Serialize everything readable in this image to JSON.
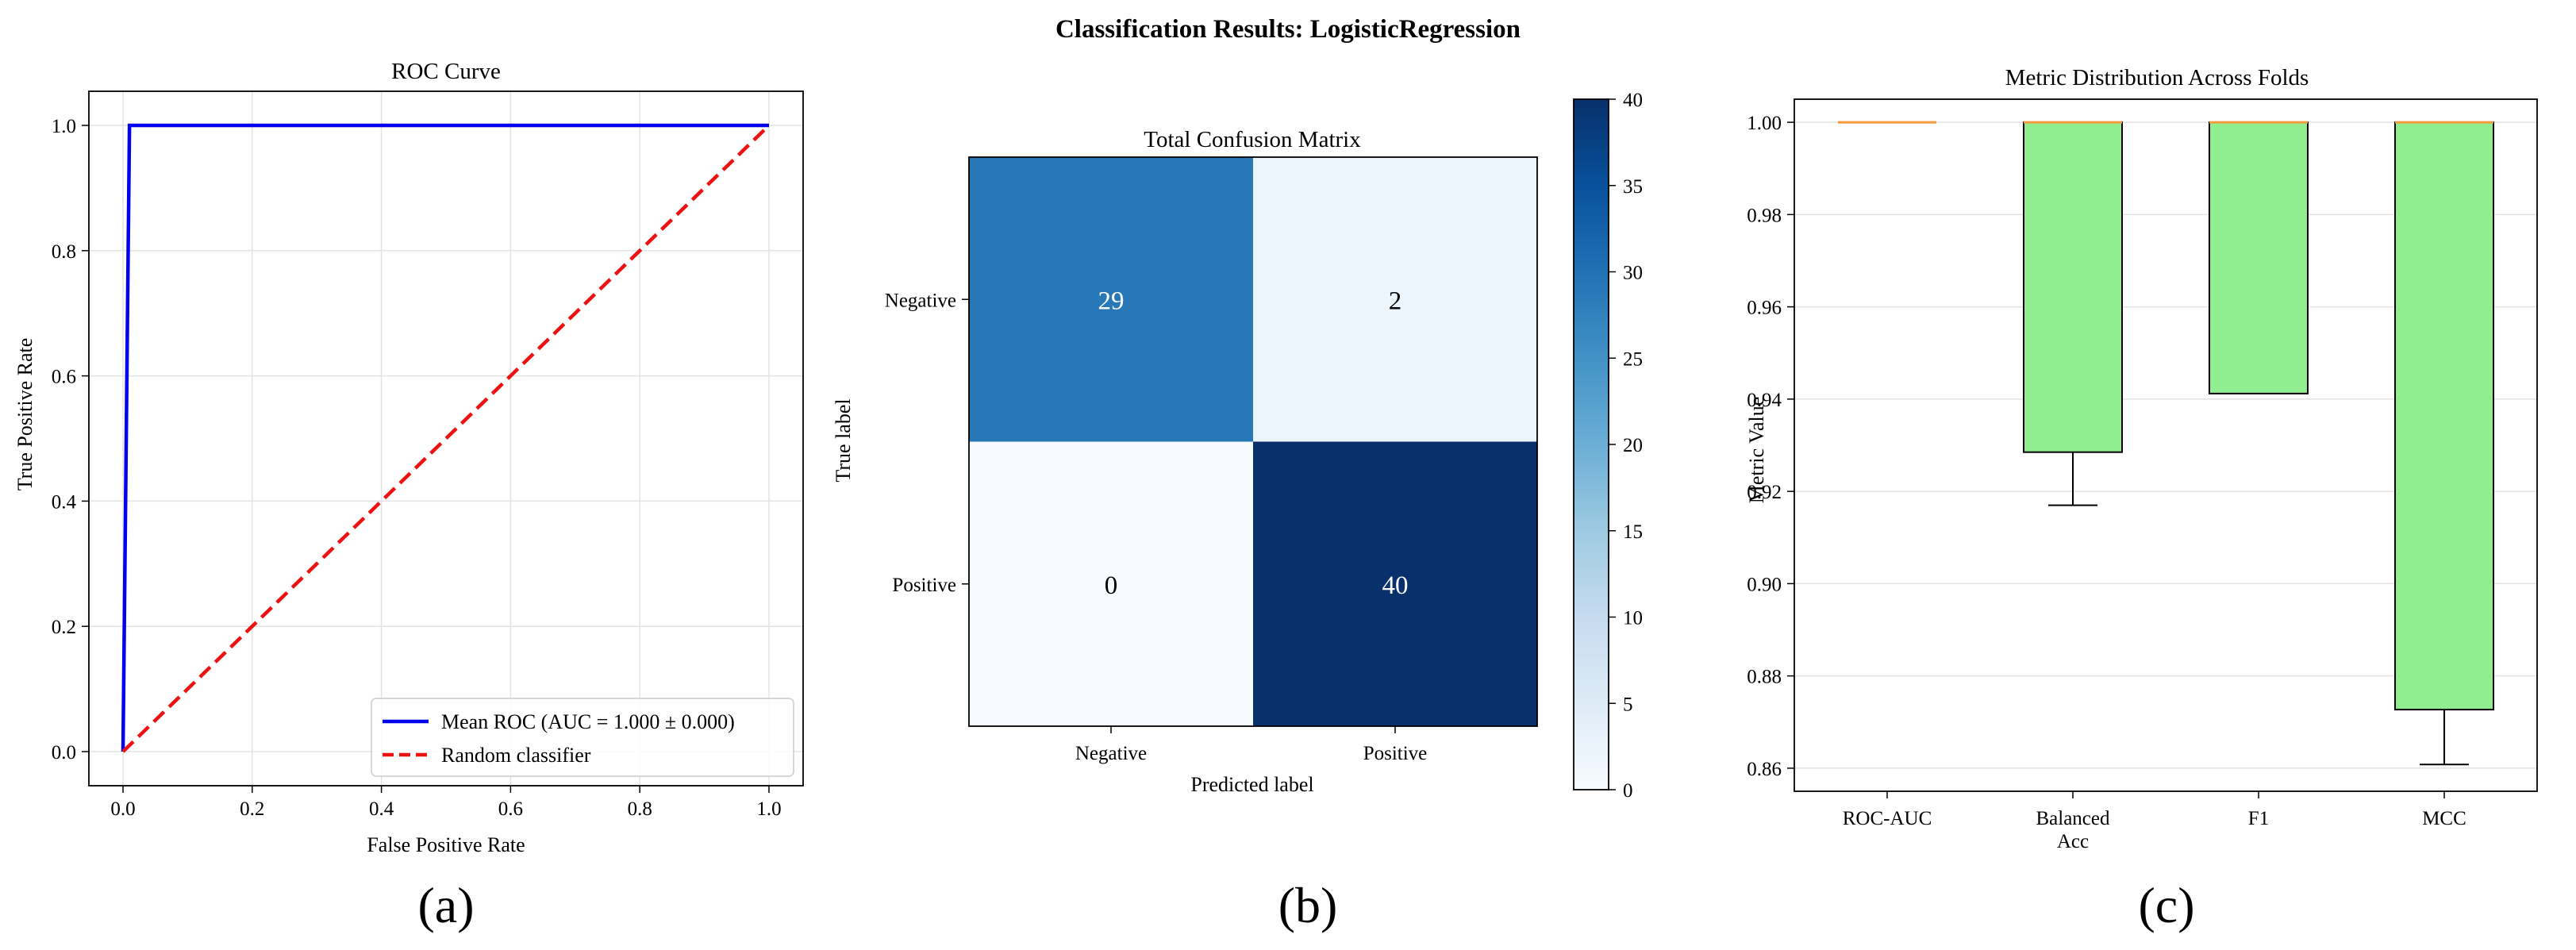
{
  "figure": {
    "title": "Classification Results: LogisticRegression",
    "panel_letters": [
      "(a)",
      "(b)",
      "(c)"
    ]
  },
  "colors": {
    "roc_line": "#0000ee",
    "random_line": "#ee1111",
    "grid": "#e3e3e3",
    "box_fill": "#90ee90",
    "median": "#f39c3f",
    "cm_min": "#f7fbff",
    "cm_max": "#08306b"
  },
  "chart_data": [
    {
      "id": "roc",
      "type": "line",
      "title": "ROC Curve",
      "xlabel": "False Positive Rate",
      "ylabel": "True Positive Rate",
      "xlim": [
        0,
        1
      ],
      "ylim": [
        0,
        1
      ],
      "xticks": [
        "0.0",
        "0.2",
        "0.4",
        "0.6",
        "0.8",
        "1.0"
      ],
      "yticks": [
        "0.0",
        "0.2",
        "0.4",
        "0.6",
        "0.8",
        "1.0"
      ],
      "grid": true,
      "legend_position": "bottom-right",
      "series": [
        {
          "name": "Mean ROC (AUC = 1.000 ± 0.000)",
          "style": "solid",
          "x": [
            0.0,
            0.01,
            1.0
          ],
          "y": [
            0.0,
            1.0,
            1.0
          ]
        },
        {
          "name": "Random classifier",
          "style": "dashed",
          "x": [
            0.0,
            1.0
          ],
          "y": [
            0.0,
            1.0
          ]
        }
      ]
    },
    {
      "id": "confusion",
      "type": "heatmap",
      "title": "Total Confusion Matrix",
      "xlabel": "Predicted label",
      "ylabel": "True label",
      "x_categories": [
        "Negative",
        "Positive"
      ],
      "y_categories": [
        "Negative",
        "Positive"
      ],
      "values": [
        [
          29,
          2
        ],
        [
          0,
          40
        ]
      ],
      "colorbar": {
        "min": 0,
        "max": 40,
        "ticks": [
          "0",
          "5",
          "10",
          "15",
          "20",
          "25",
          "30",
          "35",
          "40"
        ]
      }
    },
    {
      "id": "metrics",
      "type": "box",
      "title": "Metric Distribution Across Folds",
      "xlabel": "",
      "ylabel": "Metric Value",
      "ylim": [
        0.855,
        1.005
      ],
      "yticks": [
        "0.86",
        "0.88",
        "0.90",
        "0.92",
        "0.94",
        "0.96",
        "0.98",
        "1.00"
      ],
      "grid": true,
      "categories": [
        "ROC-AUC",
        "Balanced\nAcc",
        "F1",
        "MCC"
      ],
      "boxes": [
        {
          "min": 1.0,
          "q1": 1.0,
          "median": 1.0,
          "q3": 1.0,
          "max": 1.0
        },
        {
          "min": 0.917,
          "q1": 0.9285,
          "median": 1.0,
          "q3": 1.0,
          "max": 1.0
        },
        {
          "min": 0.9412,
          "q1": 0.9412,
          "median": 1.0,
          "q3": 1.0,
          "max": 1.0
        },
        {
          "min": 0.8608,
          "q1": 0.8727,
          "median": 1.0,
          "q3": 1.0,
          "max": 1.0
        }
      ]
    }
  ]
}
